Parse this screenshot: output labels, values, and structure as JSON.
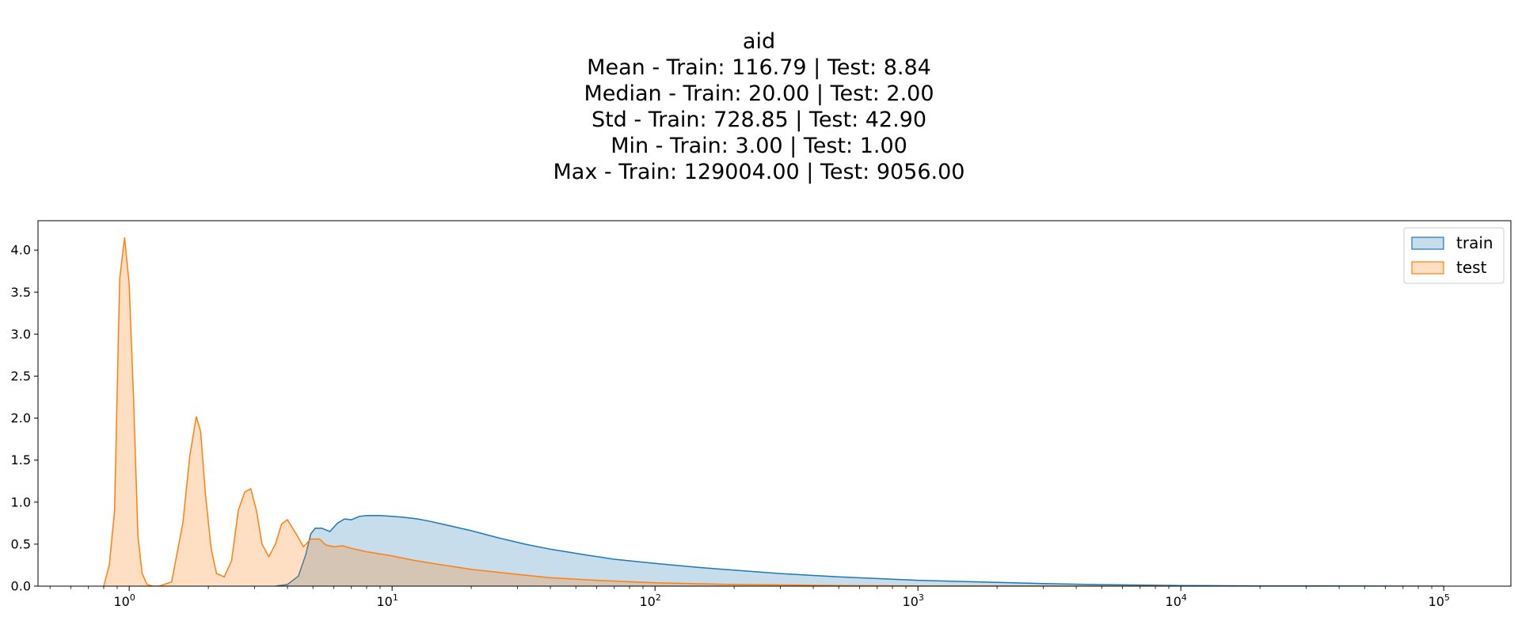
{
  "chart_data": {
    "type": "area",
    "title": "aid",
    "subtitle_lines": [
      "Mean - Train: 116.79 |  Test: 8.84",
      "Median - Train: 20.00 |  Test: 2.00",
      "Std - Train: 728.85 |  Test: 42.90",
      "Min - Train: 3.00 |  Test: 1.00",
      "Max - Train: 129004.00 |  Test: 9056.00"
    ],
    "xlabel": "",
    "ylabel": "",
    "x_scale": "log",
    "xlim": [
      0.45,
      180000
    ],
    "ylim": [
      0,
      4.35
    ],
    "x_ticks": [
      {
        "value": 1,
        "base": "10",
        "exp": "0"
      },
      {
        "value": 10,
        "base": "10",
        "exp": "1"
      },
      {
        "value": 100,
        "base": "10",
        "exp": "2"
      },
      {
        "value": 1000,
        "base": "10",
        "exp": "3"
      },
      {
        "value": 10000,
        "base": "10",
        "exp": "4"
      },
      {
        "value": 100000,
        "base": "10",
        "exp": "5"
      }
    ],
    "y_ticks": [
      "0.0",
      "0.5",
      "1.0",
      "1.5",
      "2.0",
      "2.5",
      "3.0",
      "3.5",
      "4.0"
    ],
    "grid": false,
    "legend_position": "top-right",
    "series": [
      {
        "name": "train",
        "color": "#1f77b4",
        "x": [
          3.6,
          4.0,
          4.4,
          4.7,
          4.9,
          5.1,
          5.4,
          5.8,
          6.2,
          6.6,
          7.0,
          7.5,
          8.0,
          9.0,
          10.0,
          11.0,
          12.5,
          14.0,
          16.0,
          20.0,
          25.0,
          32.0,
          40.0,
          55.0,
          70.0,
          100.0,
          150.0,
          200.0,
          300.0,
          500.0,
          700.0,
          1000.0,
          2000.0,
          3000.0,
          5000.0,
          10000.0,
          20000.0,
          50000.0,
          100000.0
        ],
        "y": [
          0.0,
          0.02,
          0.12,
          0.38,
          0.62,
          0.69,
          0.69,
          0.65,
          0.75,
          0.8,
          0.79,
          0.83,
          0.84,
          0.84,
          0.83,
          0.82,
          0.8,
          0.77,
          0.73,
          0.66,
          0.58,
          0.5,
          0.44,
          0.37,
          0.32,
          0.27,
          0.22,
          0.19,
          0.15,
          0.11,
          0.09,
          0.07,
          0.045,
          0.03,
          0.018,
          0.008,
          0.003,
          0.001,
          0.0
        ]
      },
      {
        "name": "test",
        "color": "#ff7f0e",
        "x": [
          0.8,
          0.84,
          0.88,
          0.92,
          0.96,
          1.0,
          1.04,
          1.08,
          1.12,
          1.17,
          1.23,
          1.3,
          1.45,
          1.6,
          1.7,
          1.8,
          1.87,
          1.95,
          2.05,
          2.15,
          2.3,
          2.45,
          2.6,
          2.75,
          2.9,
          3.05,
          3.2,
          3.4,
          3.6,
          3.8,
          4.0,
          4.3,
          4.6,
          4.9,
          5.3,
          5.6,
          6.0,
          6.5,
          7.0,
          8.0,
          10.0,
          12.0,
          15.0,
          20.0,
          30.0,
          40.0,
          60.0,
          100.0,
          200.0,
          500.0,
          1000.0,
          3000.0,
          9000.0
        ],
        "y": [
          0.0,
          0.25,
          0.9,
          3.65,
          4.15,
          3.6,
          2.2,
          0.6,
          0.15,
          0.02,
          0.0,
          0.0,
          0.05,
          0.75,
          1.55,
          2.02,
          1.84,
          1.1,
          0.45,
          0.15,
          0.11,
          0.3,
          0.9,
          1.12,
          1.16,
          0.9,
          0.5,
          0.35,
          0.5,
          0.74,
          0.79,
          0.63,
          0.47,
          0.56,
          0.56,
          0.49,
          0.47,
          0.48,
          0.45,
          0.41,
          0.36,
          0.31,
          0.26,
          0.2,
          0.14,
          0.1,
          0.07,
          0.04,
          0.02,
          0.008,
          0.003,
          0.001,
          0.0
        ]
      }
    ]
  }
}
